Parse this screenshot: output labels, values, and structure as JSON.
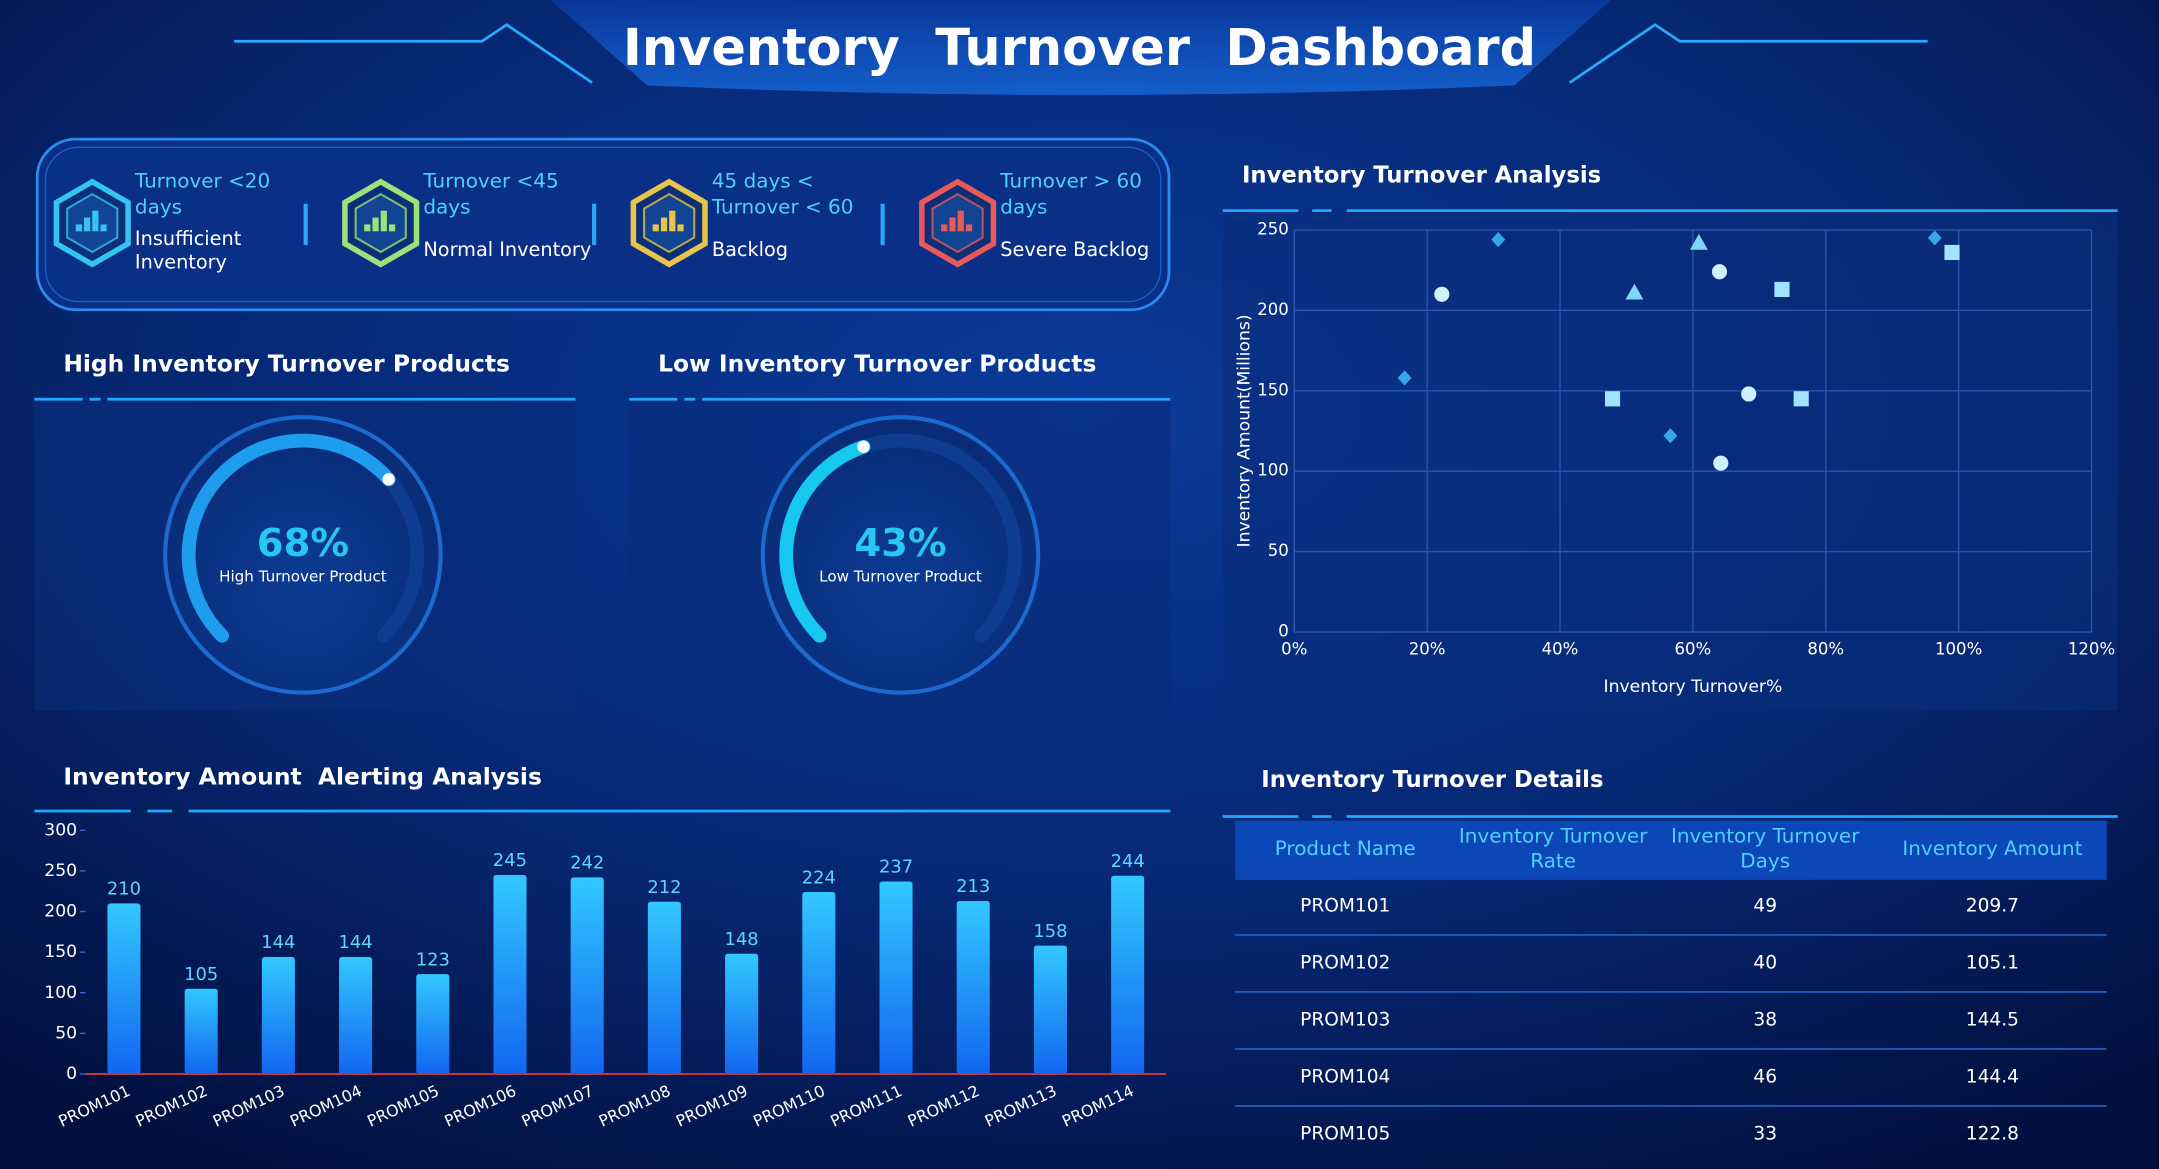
{
  "header": {
    "title": "Inventory  Turnover  Dashboard"
  },
  "legend": [
    {
      "range": [
        "Turnover <20",
        "days"
      ],
      "status": [
        "Insufficient",
        "Inventory"
      ],
      "color": "#35c3f2"
    },
    {
      "range": [
        "Turnover <45",
        "days"
      ],
      "status": [
        "Normal Inventory"
      ],
      "color": "#9be27a"
    },
    {
      "range": [
        "45 days <",
        "Turnover < 60"
      ],
      "status": [
        "Backlog"
      ],
      "color": "#e8c54a"
    },
    {
      "range": [
        "Turnover > 60",
        "days"
      ],
      "status": [
        "Severe Backlog"
      ],
      "color": "#e85a5a"
    }
  ],
  "chart_data": [
    {
      "type": "gauge",
      "title": "High Inventory Turnover Products",
      "value": 68,
      "value_label": "68%",
      "label": "High Turnover Product",
      "color": "#1e9cf0"
    },
    {
      "type": "gauge",
      "title": "Low Inventory Turnover Products",
      "value": 43,
      "value_label": "43%",
      "label": "Low Turnover Product",
      "color": "#16c8f0"
    },
    {
      "type": "scatter",
      "title": "Inventory Turnover Analysis",
      "xlabel": "Inventory Turnover%",
      "ylabel": "Inventory Amount(Millions)",
      "xlim": [
        0,
        120
      ],
      "ylim": [
        0,
        250
      ],
      "xticks": [
        {
          "value": 0,
          "label": "0%"
        },
        {
          "value": 20,
          "label": "20%"
        },
        {
          "value": 40,
          "label": "40%"
        },
        {
          "value": 60,
          "label": "60%"
        },
        {
          "value": 80,
          "label": "80%"
        },
        {
          "value": 100,
          "label": "100%"
        },
        {
          "value": 120,
          "label": "120%"
        }
      ],
      "yticks": [
        0,
        50,
        100,
        150,
        200,
        250
      ],
      "grid": true,
      "series": [
        {
          "marker": "diamond",
          "color": "#3aa6ea",
          "x": [
            16.6,
            30.7,
            56.6,
            96.4
          ],
          "values": [
            158,
            244,
            122,
            245
          ]
        },
        {
          "marker": "circle",
          "color": "#d2f1ff",
          "x": [
            22.2,
            64,
            68.4,
            64.2
          ],
          "values": [
            210,
            224,
            148,
            105
          ]
        },
        {
          "marker": "triangle",
          "color": "#7fd6f5",
          "x": [
            51.2,
            60.9
          ],
          "values": [
            211,
            242
          ]
        },
        {
          "marker": "square",
          "color": "#9fe3ff",
          "x": [
            47.9,
            73.4,
            76.3,
            99
          ],
          "values": [
            145,
            213,
            145,
            236
          ]
        }
      ]
    },
    {
      "type": "bar",
      "title": "Inventory Amount  Alerting Analysis",
      "categories": [
        "PROM101",
        "PROM102",
        "PROM103",
        "PROM104",
        "PROM105",
        "PROM106",
        "PROM107",
        "PROM108",
        "PROM109",
        "PROM110",
        "PROM111",
        "PROM112",
        "PROM113",
        "PROM114"
      ],
      "values": [
        210,
        105,
        144,
        144,
        123,
        245,
        242,
        212,
        148,
        224,
        237,
        213,
        158,
        244
      ],
      "ylim": [
        0,
        300
      ],
      "yticks": [
        0,
        50,
        100,
        150,
        200,
        250,
        300
      ],
      "color": "#1aa0f5"
    }
  ],
  "table": {
    "title": "Inventory Turnover Details",
    "columns": [
      [
        "Product Name"
      ],
      [
        "Inventory Turnover",
        "Rate"
      ],
      [
        "Inventory Turnover",
        "Days"
      ],
      [
        "Inventory Amount"
      ]
    ],
    "rows": [
      {
        "product": "PROM101",
        "days": 49,
        "amount": 209.7
      },
      {
        "product": "PROM102",
        "days": 40,
        "amount": 105.1
      },
      {
        "product": "PROM103",
        "days": 38,
        "amount": 144.5
      },
      {
        "product": "PROM104",
        "days": 46,
        "amount": 144.4
      },
      {
        "product": "PROM105",
        "days": 33,
        "amount": 122.8
      }
    ]
  }
}
